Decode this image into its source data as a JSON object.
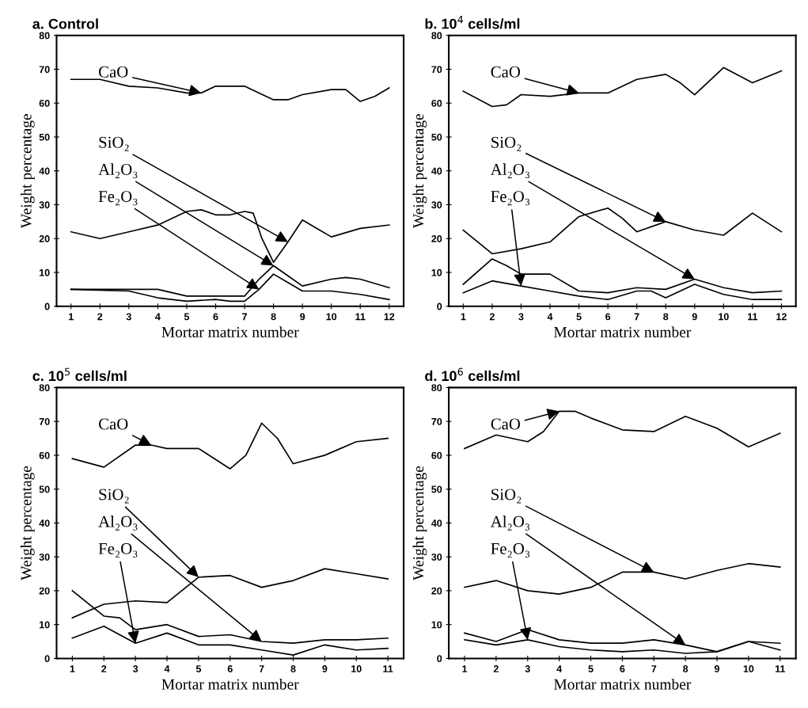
{
  "chart_data": [
    {
      "type": "line",
      "title": "a. Control",
      "xlabel": "Mortar matrix number",
      "ylabel": "Weight percentage",
      "xlim": [
        0.5,
        12.5
      ],
      "xticks": [
        1,
        2,
        3,
        4,
        5,
        6,
        7,
        8,
        9,
        10,
        11,
        12
      ],
      "ylim": [
        0,
        80
      ],
      "yticks": [
        0,
        10,
        20,
        30,
        40,
        50,
        60,
        70,
        80
      ],
      "grid": false,
      "marker": "none",
      "line_style": "solid",
      "series": [
        {
          "color": "#000000",
          "x": [
            1,
            2,
            3,
            4,
            5,
            5.5,
            6,
            7,
            7.5,
            8,
            8.5,
            9,
            10,
            10.5,
            11,
            11.5,
            12
          ],
          "values": [
            67,
            67,
            65,
            64.5,
            63,
            63,
            65,
            65,
            63,
            61,
            61,
            62.5,
            64,
            64,
            60.5,
            62,
            64.5
          ]
        },
        {
          "color": "#000000",
          "x": [
            1,
            2,
            3,
            4,
            5,
            5.5,
            6,
            6.5,
            7,
            7.3,
            7.6,
            8,
            8.5,
            9,
            9.5,
            10,
            11,
            12
          ],
          "values": [
            22,
            20,
            22,
            24,
            28,
            28.5,
            27,
            27,
            28,
            27.5,
            20,
            13,
            19,
            25.5,
            23,
            20.5,
            23,
            24
          ]
        },
        {
          "color": "#000000",
          "x": [
            1,
            3,
            4,
            5,
            6,
            6.5,
            7,
            7.5,
            8,
            8.5,
            9,
            10,
            10.5,
            11,
            12
          ],
          "values": [
            5,
            5,
            5,
            3,
            3,
            3,
            3,
            8,
            12,
            9,
            6,
            8,
            8.5,
            8,
            5.5
          ]
        },
        {
          "color": "#000000",
          "x": [
            1,
            3,
            4,
            5,
            6,
            6.5,
            7,
            7.5,
            8,
            8.5,
            9,
            10,
            11,
            12
          ],
          "values": [
            5,
            4.5,
            2.5,
            1.5,
            2,
            1.5,
            1.5,
            5,
            9.5,
            7,
            4.5,
            4.5,
            3.5,
            2
          ]
        }
      ],
      "annotations": [
        {
          "text": "CaO",
          "x": 5.5,
          "y": 63
        },
        {
          "text": "SiO₂",
          "x": 8.5,
          "y": 19
        },
        {
          "text": "Al₂O₃",
          "x": 8,
          "y": 12
        },
        {
          "text": "Fe₂O₃",
          "x": 7.5,
          "y": 5
        }
      ]
    },
    {
      "type": "line",
      "title": "b. 10$^{4}$ cells/ml",
      "xlabel": "Mortar matrix number",
      "ylabel": "Weight percentage",
      "xlim": [
        0.5,
        12.5
      ],
      "xticks": [
        1,
        2,
        3,
        4,
        5,
        6,
        7,
        8,
        9,
        10,
        11,
        12
      ],
      "ylim": [
        0,
        80
      ],
      "yticks": [
        0,
        10,
        20,
        30,
        40,
        50,
        60,
        70,
        80
      ],
      "grid": false,
      "marker": "none",
      "line_style": "solid",
      "series": [
        {
          "color": "#000000",
          "x": [
            1,
            2,
            2.5,
            3,
            4,
            5,
            6,
            7,
            8,
            8.5,
            9,
            10,
            11,
            12
          ],
          "values": [
            63.5,
            59,
            59.5,
            62.5,
            62,
            63,
            63,
            67,
            68.5,
            66,
            62.5,
            70.5,
            66,
            69.5
          ]
        },
        {
          "color": "#000000",
          "x": [
            1,
            2,
            3,
            4,
            5,
            6,
            6.5,
            7,
            8,
            9,
            10,
            11,
            12
          ],
          "values": [
            22.5,
            15.5,
            17,
            19,
            26.5,
            29,
            26,
            22,
            25,
            22.5,
            21,
            27.5,
            22
          ]
        },
        {
          "color": "#000000",
          "x": [
            1,
            2,
            2.5,
            3,
            4,
            5,
            6,
            7,
            8,
            9,
            10,
            11,
            12
          ],
          "values": [
            6.5,
            14,
            12,
            9.5,
            9.5,
            4.5,
            4,
            5.5,
            5,
            8,
            5.5,
            4,
            4.5
          ]
        },
        {
          "color": "#000000",
          "x": [
            1,
            2,
            3,
            4,
            5,
            6,
            7,
            7.5,
            8,
            9,
            10,
            11,
            12
          ],
          "values": [
            4,
            7.5,
            6,
            4.5,
            3,
            2,
            4.5,
            4.5,
            2.5,
            6.5,
            3.5,
            2,
            2
          ]
        }
      ],
      "annotations": [
        {
          "text": "CaO",
          "x": 5,
          "y": 63
        },
        {
          "text": "SiO₂",
          "x": 8,
          "y": 25
        },
        {
          "text": "Al₂O₃",
          "x": 9,
          "y": 8
        },
        {
          "text": "Fe₂O₃",
          "x": 3,
          "y": 6
        }
      ]
    },
    {
      "type": "line",
      "title": "c. 10$^{5}$ cells/ml",
      "xlabel": "Mortar matrix number",
      "ylabel": "Weight percentage",
      "xlim": [
        0.5,
        11.5
      ],
      "xticks": [
        1,
        2,
        3,
        4,
        5,
        6,
        7,
        8,
        9,
        10,
        11
      ],
      "ylim": [
        0,
        80
      ],
      "yticks": [
        0,
        10,
        20,
        30,
        40,
        50,
        60,
        70,
        80
      ],
      "grid": false,
      "marker": "none",
      "line_style": "solid",
      "series": [
        {
          "color": "#000000",
          "x": [
            1,
            2,
            3,
            3.5,
            4,
            5,
            6,
            6.5,
            7,
            7.5,
            8,
            9,
            10,
            11
          ],
          "values": [
            59,
            56.5,
            63,
            63,
            62,
            62,
            56,
            60,
            69.5,
            65,
            57.5,
            60,
            64,
            65
          ]
        },
        {
          "color": "#000000",
          "x": [
            1,
            2,
            3,
            4,
            5,
            6,
            7,
            8,
            9,
            10,
            11
          ],
          "values": [
            12,
            16,
            17,
            16.5,
            24,
            24.5,
            21,
            23,
            26.5,
            25,
            23.5
          ]
        },
        {
          "color": "#000000",
          "x": [
            1,
            2,
            2.5,
            3,
            4,
            5,
            6,
            7,
            8,
            9,
            10,
            11
          ],
          "values": [
            20,
            12.5,
            12,
            8.5,
            10,
            6.5,
            7,
            5,
            4.5,
            5.5,
            5.5,
            6
          ]
        },
        {
          "color": "#000000",
          "x": [
            1,
            2,
            3,
            4,
            5,
            6,
            7,
            8,
            9,
            10,
            11
          ],
          "values": [
            6,
            9.5,
            4.5,
            7.5,
            4,
            4,
            2.5,
            1,
            4,
            2.5,
            3
          ]
        }
      ],
      "annotations": [
        {
          "text": "CaO",
          "x": 3.5,
          "y": 63
        },
        {
          "text": "SiO₂",
          "x": 5,
          "y": 24
        },
        {
          "text": "Al₂O₃",
          "x": 7,
          "y": 5
        },
        {
          "text": "Fe₂O₃",
          "x": 3,
          "y": 4.5
        }
      ]
    },
    {
      "type": "line",
      "title": "d. 10$^{6}$ cells/ml",
      "xlabel": "Mortar matrix number",
      "ylabel": "Weight percentage",
      "xlim": [
        0.5,
        11.5
      ],
      "xticks": [
        1,
        2,
        3,
        4,
        5,
        6,
        7,
        8,
        9,
        10,
        11
      ],
      "ylim": [
        0,
        80
      ],
      "yticks": [
        0,
        10,
        20,
        30,
        40,
        50,
        60,
        70,
        80
      ],
      "grid": false,
      "marker": "none",
      "line_style": "solid",
      "series": [
        {
          "color": "#000000",
          "x": [
            1,
            2,
            3,
            3.5,
            4,
            4.5,
            5,
            6,
            7,
            8,
            9,
            10,
            11
          ],
          "values": [
            62,
            66,
            64,
            67,
            73,
            73,
            71,
            67.5,
            67,
            71.5,
            68,
            62.5,
            66.5
          ]
        },
        {
          "color": "#000000",
          "x": [
            1,
            2,
            3,
            4,
            5,
            6,
            7,
            8,
            9,
            10,
            11
          ],
          "values": [
            21,
            23,
            20,
            19,
            21,
            25.5,
            25.5,
            23.5,
            26,
            28,
            27
          ]
        },
        {
          "color": "#000000",
          "x": [
            1,
            2,
            3,
            4,
            5,
            6,
            7,
            8,
            9,
            10,
            11
          ],
          "values": [
            7.5,
            5,
            8.5,
            5.5,
            4.5,
            4.5,
            5.5,
            4,
            2,
            5,
            4.5
          ]
        },
        {
          "color": "#000000",
          "x": [
            1,
            2,
            3,
            4,
            5,
            6,
            7,
            8,
            9,
            10,
            11
          ],
          "values": [
            5.5,
            4,
            5.5,
            3.5,
            2.5,
            2,
            2.5,
            1.5,
            2,
            5,
            2.5
          ]
        }
      ],
      "annotations": [
        {
          "text": "CaO",
          "x": 4,
          "y": 73
        },
        {
          "text": "SiO₂",
          "x": 7,
          "y": 25.5
        },
        {
          "text": "Al₂O₃",
          "x": 8,
          "y": 4
        },
        {
          "text": "Fe₂O₃",
          "x": 3,
          "y": 5.5
        }
      ]
    }
  ]
}
